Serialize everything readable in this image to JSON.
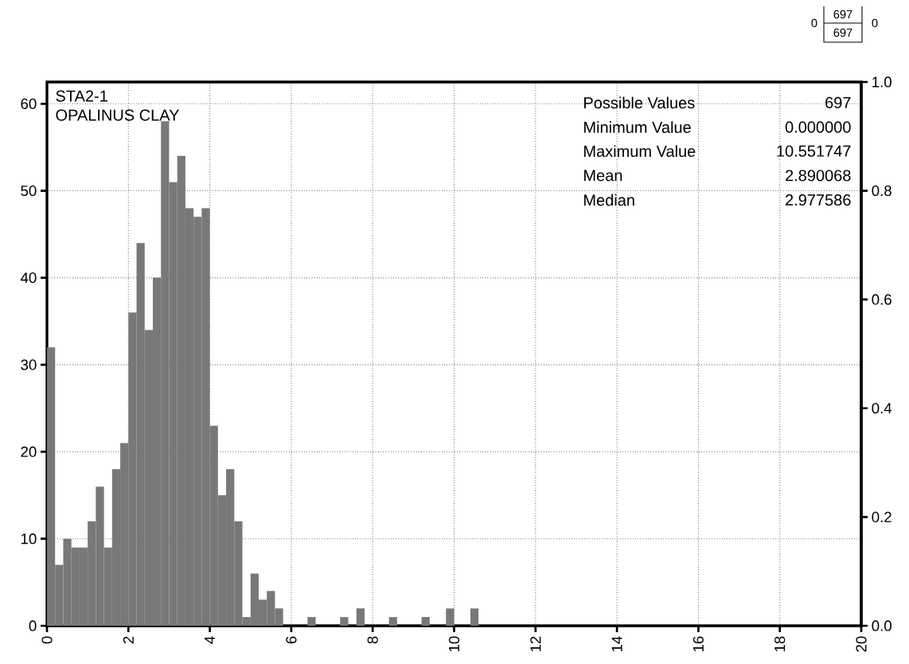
{
  "chart_data": {
    "type": "histogram",
    "bins": [
      0,
      0.2,
      0.4,
      0.6,
      0.8,
      1.0,
      1.2,
      1.4,
      1.6,
      1.8,
      2.0,
      2.2,
      2.4,
      2.6,
      2.8,
      3.0,
      3.2,
      3.4,
      3.6,
      3.8,
      4.0,
      4.2,
      4.4,
      4.6,
      4.8,
      5.0,
      5.2,
      5.4,
      5.6,
      5.8,
      6.0,
      6.2,
      6.4,
      6.6,
      6.8,
      7.0,
      7.2,
      7.4,
      7.6,
      7.8,
      8.0,
      8.2,
      8.4,
      8.6,
      8.8,
      9.0,
      9.2,
      9.4,
      9.6,
      9.8,
      10.0,
      10.2,
      10.4,
      10.6
    ],
    "values": [
      32,
      7,
      10,
      9,
      9,
      12,
      16,
      9,
      18,
      21,
      36,
      44,
      34,
      40,
      58,
      51,
      54,
      48,
      47,
      48,
      23,
      15,
      18,
      12,
      1,
      6,
      3,
      4,
      2,
      0,
      0,
      0,
      1,
      0,
      0,
      0,
      1,
      0,
      2,
      0,
      0,
      0,
      1,
      0,
      0,
      0,
      1,
      0,
      0,
      2,
      0,
      0,
      2
    ],
    "color": "#787878",
    "xlim": [
      0,
      20
    ],
    "xticks": [
      0,
      2,
      4,
      6,
      8,
      10,
      12,
      14,
      16,
      18,
      20
    ],
    "ylim": [
      0,
      62.5
    ],
    "yticks": [
      0,
      10,
      20,
      30,
      40,
      50,
      60
    ],
    "y2lim": [
      0,
      1
    ],
    "y2ticks": [
      {
        "value": 0,
        "label": "0.0"
      },
      {
        "value": 0.2,
        "label": "0.2"
      },
      {
        "value": 0.4,
        "label": "0.4"
      },
      {
        "value": 0.6,
        "label": "0.6"
      },
      {
        "value": 0.8,
        "label": "0.8"
      },
      {
        "value": 1,
        "label": "1.0"
      }
    ],
    "grid": true,
    "annotations": [
      "STA2-1",
      "OPALINUS CLAY",
      "Possible Values",
      "697",
      "Minimum Value",
      "0.000000",
      "Maximum Value",
      "10.551747",
      "Mean",
      "2.890068",
      "Median",
      "2.977586",
      "0",
      "697",
      "697",
      "0"
    ]
  }
}
